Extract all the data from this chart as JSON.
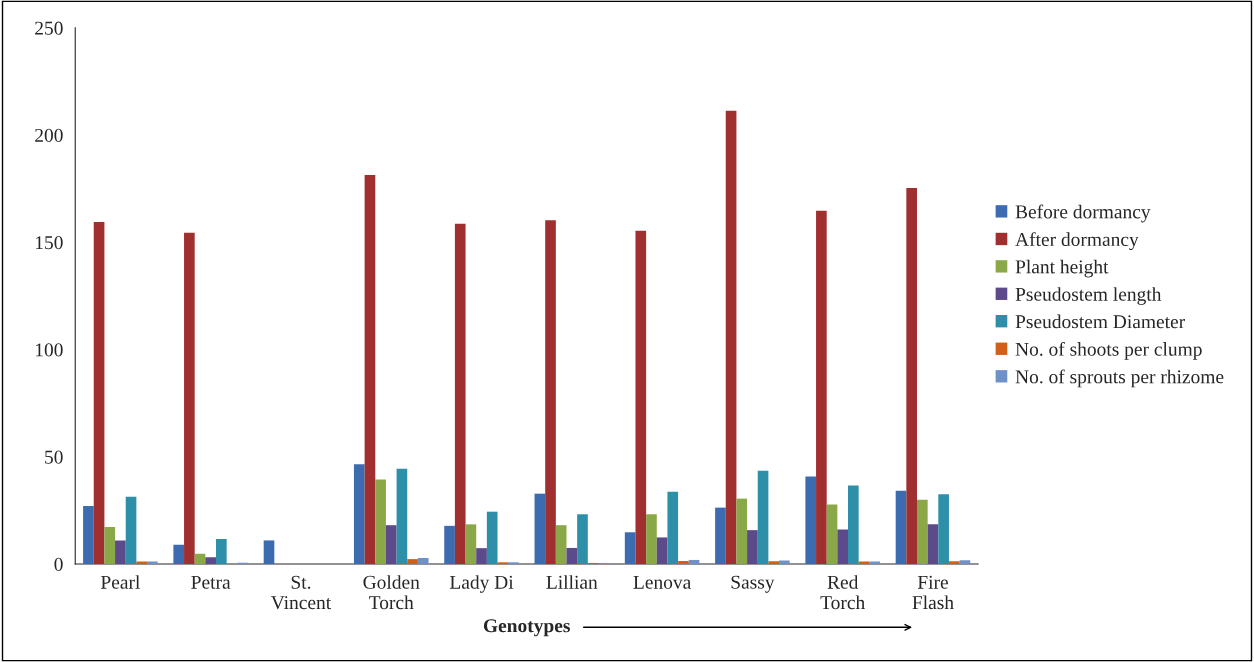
{
  "chart_data": {
    "type": "bar",
    "xlabel": "Genotypes",
    "categories": [
      "Pearl",
      "Petra",
      "St.\nVincent",
      "Golden\nTorch",
      "Lady Di",
      "Lillian",
      "Lenova",
      "Sassy",
      "Red\nTorch",
      "Fire\nFlash"
    ],
    "series": [
      {
        "name": "Before dormancy",
        "color": "#3c6bb0",
        "values": [
          27,
          9,
          11,
          46.5,
          17.8,
          32.8,
          14.8,
          26.3,
          40.8,
          34.2
        ]
      },
      {
        "name": "After dormancy",
        "color": "#a03030",
        "values": [
          159.5,
          154.5,
          0,
          181.4,
          158.6,
          160.3,
          155.4,
          211.3,
          164.7,
          175.3
        ]
      },
      {
        "name": "Plant height",
        "color": "#8aa848",
        "values": [
          17.3,
          4.8,
          0,
          39.4,
          18.5,
          18.1,
          23.2,
          30.5,
          27.8,
          30
        ]
      },
      {
        "name": "Pseudostem length",
        "color": "#5c4a8a",
        "values": [
          11,
          3.1,
          0,
          18.1,
          7.4,
          7.5,
          12.4,
          15.8,
          16.1,
          18.6
        ]
      },
      {
        "name": "Pseudostem Diameter",
        "color": "#2e8fa8",
        "values": [
          31.4,
          11.7,
          0,
          44.4,
          24.4,
          23.2,
          33.7,
          43.5,
          36.6,
          32.5
        ]
      },
      {
        "name": "No. of shoots per clump",
        "color": "#d06018",
        "values": [
          1.2,
          0,
          0,
          2.3,
          0.8,
          0.5,
          1.4,
          1.3,
          1.2,
          1.3
        ]
      },
      {
        "name": "No. of sprouts per rhizome",
        "color": "#7090c8",
        "values": [
          1.2,
          0.6,
          0,
          2.8,
          0.8,
          0.5,
          1.9,
          1.6,
          1.2,
          1.8
        ]
      }
    ],
    "ylim": [
      0,
      250
    ],
    "yticks": [
      0,
      50,
      100,
      150,
      200,
      250
    ],
    "grid": false,
    "legend": "right"
  }
}
